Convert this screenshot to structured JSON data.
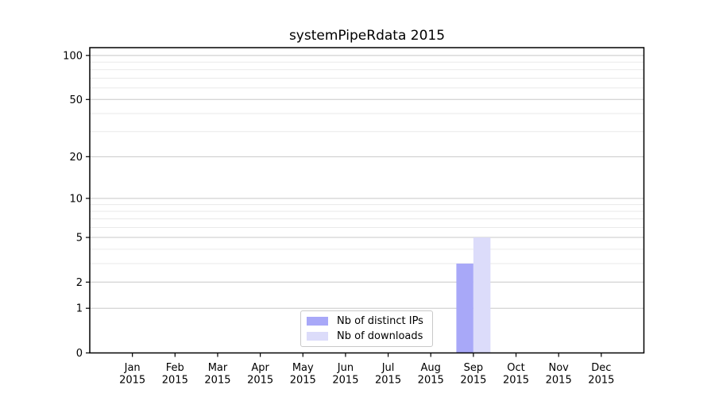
{
  "figure": {
    "background": "#ffffff"
  },
  "chart_data": {
    "type": "bar",
    "title": "systemPipeRdata 2015",
    "categories": [
      "Jan",
      "Feb",
      "Mar",
      "Apr",
      "May",
      "Jun",
      "Jul",
      "Aug",
      "Sep",
      "Oct",
      "Nov",
      "Dec"
    ],
    "x_sub_label": "2015",
    "series": [
      {
        "name": "Nb of distinct IPs",
        "color": "#a8a8f8",
        "values": [
          0,
          0,
          0,
          0,
          0,
          0,
          0,
          0,
          3,
          0,
          0,
          0
        ]
      },
      {
        "name": "Nb of downloads",
        "color": "#dcdcfa",
        "values": [
          0,
          0,
          0,
          0,
          0,
          0,
          0,
          0,
          5,
          0,
          0,
          0
        ]
      }
    ],
    "xlabel": "",
    "ylabel": "",
    "y_scale": "log1p",
    "ylim": [
      0,
      113
    ],
    "y_major_ticks": [
      0,
      1,
      2,
      5,
      10,
      20,
      50,
      100
    ],
    "y_minor_gridlines": [
      3,
      4,
      6,
      7,
      8,
      9,
      30,
      40,
      60,
      70,
      80,
      90
    ],
    "grid": true,
    "legend_position": "lower-center-inside",
    "colors": {
      "axis": "#000000",
      "major_grid": "#c8c8c8",
      "minor_grid": "#eaeaea",
      "text": "#000000",
      "legend_border": "#c9c9c9",
      "legend_bg": "#ffffff"
    }
  }
}
